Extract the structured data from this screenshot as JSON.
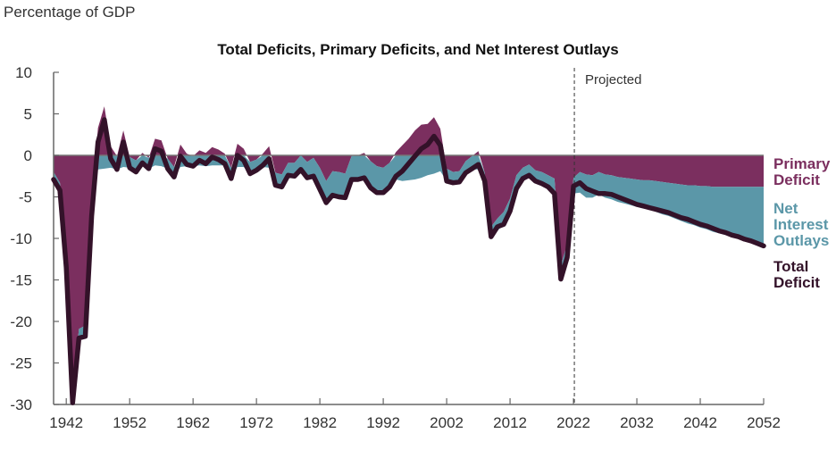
{
  "chart_data": {
    "type": "area",
    "title": "Total Deficits, Primary Deficits, and Net Interest Outlays",
    "ylabel": "Percentage of GDP",
    "xlabel": "",
    "ylim": [
      -30,
      10
    ],
    "xlim": [
      1940,
      2052
    ],
    "yticks": [
      10,
      5,
      0,
      -5,
      -10,
      -15,
      -20,
      -25,
      -30
    ],
    "xticks": [
      1942,
      1952,
      1962,
      1972,
      1982,
      1992,
      2002,
      2012,
      2022,
      2032,
      2042,
      2052
    ],
    "annotation": "Projected",
    "projection_start": 2022,
    "grid": false,
    "colors": {
      "primary_deficit": "#7b2f5f",
      "net_interest": "#5b97a8",
      "total_deficit": "#331229",
      "zero_line": "#777777"
    },
    "legend": [
      {
        "key": "primary_deficit",
        "label_lines": [
          "Primary",
          "Deficit"
        ]
      },
      {
        "key": "net_interest",
        "label_lines": [
          "Net",
          "Interest",
          "Outlays"
        ]
      },
      {
        "key": "total_deficit",
        "label_lines": [
          "Total",
          "Deficit"
        ]
      }
    ],
    "x": [
      1940,
      1941,
      1942,
      1943,
      1944,
      1945,
      1946,
      1947,
      1948,
      1949,
      1950,
      1951,
      1952,
      1953,
      1954,
      1955,
      1956,
      1957,
      1958,
      1959,
      1960,
      1961,
      1962,
      1963,
      1964,
      1965,
      1966,
      1967,
      1968,
      1969,
      1970,
      1971,
      1972,
      1973,
      1974,
      1975,
      1976,
      1977,
      1978,
      1979,
      1980,
      1981,
      1982,
      1983,
      1984,
      1985,
      1986,
      1987,
      1988,
      1989,
      1990,
      1991,
      1992,
      1993,
      1994,
      1995,
      1996,
      1997,
      1998,
      1999,
      2000,
      2001,
      2002,
      2003,
      2004,
      2005,
      2006,
      2007,
      2008,
      2009,
      2010,
      2011,
      2012,
      2013,
      2014,
      2015,
      2016,
      2017,
      2018,
      2019,
      2020,
      2021,
      2022,
      2023,
      2024,
      2025,
      2026,
      2027,
      2028,
      2029,
      2030,
      2031,
      2032,
      2033,
      2034,
      2035,
      2036,
      2037,
      2038,
      2039,
      2040,
      2041,
      2042,
      2043,
      2044,
      2045,
      2046,
      2047,
      2048,
      2049,
      2050,
      2051,
      2052
    ],
    "series": [
      {
        "name": "Primary Deficit",
        "key": "primary_deficit",
        "values": [
          -2.0,
          -3.3,
          -12.8,
          -28.9,
          -20.9,
          -20.5,
          -5.7,
          3.3,
          5.9,
          1.1,
          -0.1,
          3.0,
          -0.2,
          -0.6,
          0.3,
          -0.3,
          2.0,
          1.8,
          -0.4,
          -1.4,
          1.3,
          0.2,
          -0.1,
          0.6,
          0.3,
          1.0,
          0.7,
          0.2,
          -1.5,
          1.4,
          0.8,
          -0.8,
          -0.5,
          0.2,
          1.1,
          -2.1,
          -2.3,
          -0.9,
          -0.9,
          0.0,
          -0.8,
          -0.3,
          -1.5,
          -3.1,
          -1.9,
          -2.0,
          -2.2,
          -0.1,
          0.0,
          0.3,
          -0.7,
          -1.3,
          -1.5,
          -0.9,
          0.4,
          1.2,
          2.0,
          3.0,
          3.7,
          3.8,
          4.6,
          3.2,
          -1.6,
          -2.0,
          -1.9,
          -0.7,
          -0.1,
          0.5,
          -2.1,
          -8.6,
          -7.6,
          -6.8,
          -5.2,
          -2.4,
          -1.5,
          -1.1,
          -1.8,
          -2.0,
          -2.4,
          -2.8,
          -13.3,
          -10.7,
          -2.7,
          -2.0,
          -2.3,
          -2.4,
          -2.0,
          -2.3,
          -2.4,
          -2.6,
          -2.7,
          -2.8,
          -2.9,
          -3.0,
          -3.0,
          -3.1,
          -3.2,
          -3.3,
          -3.4,
          -3.5,
          -3.6,
          -3.6,
          -3.7,
          -3.7,
          -3.8,
          -3.8,
          -3.8,
          -3.8,
          -3.8,
          -3.8,
          -3.8,
          -3.8,
          -3.8
        ]
      },
      {
        "name": "Net Interest Outlays",
        "key": "net_interest",
        "values": [
          -0.9,
          -0.9,
          -0.7,
          -0.9,
          -1.1,
          -1.3,
          -1.6,
          -1.7,
          -1.6,
          -1.5,
          -1.6,
          -1.4,
          -1.3,
          -1.4,
          -1.3,
          -1.3,
          -1.2,
          -1.3,
          -1.2,
          -1.2,
          -1.4,
          -1.3,
          -1.2,
          -1.2,
          -1.3,
          -1.2,
          -1.2,
          -1.2,
          -1.3,
          -1.4,
          -1.4,
          -1.4,
          -1.3,
          -1.4,
          -1.5,
          -1.5,
          -1.5,
          -1.5,
          -1.6,
          -1.7,
          -1.9,
          -2.2,
          -2.6,
          -2.6,
          -2.9,
          -3.0,
          -2.9,
          -2.8,
          -2.9,
          -3.0,
          -3.2,
          -3.2,
          -3.0,
          -2.9,
          -2.9,
          -3.1,
          -3.0,
          -2.9,
          -2.7,
          -2.4,
          -2.2,
          -1.9,
          -1.5,
          -1.3,
          -1.3,
          -1.4,
          -1.6,
          -1.7,
          -1.5,
          -1.3,
          -1.5,
          -1.5,
          -1.4,
          -1.3,
          -1.3,
          -1.3,
          -1.4,
          -1.4,
          -1.6,
          -1.8,
          -1.6,
          -1.6,
          -1.9,
          -2.5,
          -2.8,
          -2.7,
          -2.7,
          -2.8,
          -2.9,
          -3.0,
          -3.1,
          -3.2,
          -3.3,
          -3.4,
          -3.5,
          -3.7,
          -3.9,
          -4.0,
          -4.2,
          -4.4,
          -4.6,
          -4.8,
          -5.0,
          -5.2,
          -5.4,
          -5.6,
          -5.8,
          -6.0,
          -6.2,
          -6.4,
          -6.6,
          -6.8,
          -7.1
        ]
      },
      {
        "name": "Total Deficit",
        "key": "total_deficit",
        "values": [
          -2.9,
          -4.2,
          -13.5,
          -29.8,
          -22.0,
          -21.8,
          -7.3,
          1.6,
          4.3,
          -0.4,
          -1.7,
          1.6,
          -1.5,
          -2.0,
          -0.9,
          -1.6,
          0.8,
          0.5,
          -1.6,
          -2.6,
          -0.1,
          -1.1,
          -1.3,
          -0.6,
          -1.0,
          -0.2,
          -0.5,
          -1.0,
          -2.8,
          0.0,
          -0.6,
          -2.2,
          -1.8,
          -1.2,
          -0.4,
          -3.6,
          -3.8,
          -2.4,
          -2.5,
          -1.7,
          -2.7,
          -2.5,
          -4.1,
          -5.7,
          -4.8,
          -5.0,
          -5.1,
          -2.9,
          -2.9,
          -2.7,
          -3.9,
          -4.5,
          -4.5,
          -3.8,
          -2.5,
          -1.9,
          -1.0,
          -0.1,
          0.8,
          1.3,
          2.3,
          1.2,
          -3.1,
          -3.3,
          -3.2,
          -2.1,
          -1.6,
          -1.1,
          -3.1,
          -9.8,
          -8.6,
          -8.3,
          -6.7,
          -4.0,
          -2.8,
          -2.4,
          -3.1,
          -3.4,
          -3.8,
          -4.6,
          -14.9,
          -12.3,
          -3.7,
          -3.3,
          -4.0,
          -4.3,
          -4.6,
          -4.6,
          -4.7,
          -5.0,
          -5.3,
          -5.6,
          -5.9,
          -6.1,
          -6.3,
          -6.5,
          -6.7,
          -6.9,
          -7.2,
          -7.5,
          -7.7,
          -8.0,
          -8.3,
          -8.5,
          -8.8,
          -9.1,
          -9.3,
          -9.6,
          -9.8,
          -10.1,
          -10.3,
          -10.6,
          -10.9
        ]
      }
    ]
  }
}
